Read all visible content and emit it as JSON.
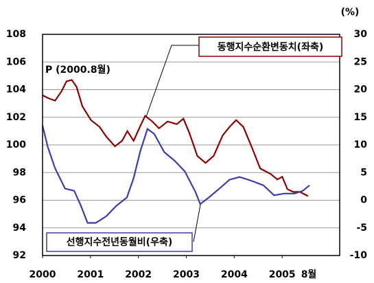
{
  "chart_data": {
    "type": "line",
    "y2label": "(%)",
    "annotations": [
      "P (2000.8월)",
      "8월"
    ],
    "xlim": [
      2000,
      2006.2
    ],
    "xticks": [
      2000,
      2001,
      2002,
      2003,
      2004,
      2005
    ],
    "ylim": [
      92,
      108
    ],
    "yticks": [
      92,
      94,
      96,
      98,
      100,
      102,
      104,
      106,
      108
    ],
    "y2lim": [
      -10,
      30
    ],
    "y2ticks": [
      -10,
      -5,
      0,
      5,
      10,
      15,
      20,
      25,
      30
    ],
    "grid": true,
    "series": [
      {
        "name": "동행지수순환변동치(좌축)",
        "color": "#8b0000",
        "axis": "y",
        "x": [
          2000.0,
          2000.11,
          2000.26,
          2000.4,
          2000.5,
          2000.61,
          2000.71,
          2000.83,
          2001.01,
          2001.19,
          2001.33,
          2001.51,
          2001.66,
          2001.77,
          2001.9,
          2002.03,
          2002.14,
          2002.29,
          2002.43,
          2002.61,
          2002.8,
          2002.94,
          2003.06,
          2003.23,
          2003.4,
          2003.57,
          2003.76,
          2003.9,
          2004.04,
          2004.19,
          2004.37,
          2004.54,
          2004.76,
          2004.9,
          2005.0,
          2005.11,
          2005.23,
          2005.37,
          2005.54
        ],
        "values": [
          103.6,
          103.4,
          103.2,
          103.9,
          104.6,
          104.7,
          104.2,
          102.8,
          101.8,
          101.3,
          100.6,
          99.9,
          100.3,
          101.0,
          100.3,
          101.3,
          102.1,
          101.7,
          101.2,
          101.7,
          101.5,
          101.9,
          100.9,
          99.2,
          98.7,
          99.2,
          100.7,
          101.3,
          101.8,
          101.3,
          99.8,
          98.3,
          97.9,
          97.5,
          97.7,
          96.8,
          96.6,
          96.6,
          96.3
        ]
      },
      {
        "name": "선행지수전년동월비(우축)",
        "color": "#3b3bb0",
        "axis": "y2",
        "x": [
          2000.0,
          2000.11,
          2000.26,
          2000.47,
          2000.66,
          2000.8,
          2000.94,
          2001.11,
          2001.33,
          2001.54,
          2001.76,
          2001.9,
          2002.04,
          2002.19,
          2002.33,
          2002.54,
          2002.76,
          2002.97,
          2003.19,
          2003.29,
          2003.47,
          2003.69,
          2003.9,
          2004.11,
          2004.33,
          2004.61,
          2004.83,
          2005.04,
          2005.26,
          2005.43,
          2005.57
        ],
        "values": [
          13.5,
          9.6,
          5.8,
          2.1,
          1.7,
          -1.0,
          -4.1,
          -4.1,
          -2.9,
          -1.0,
          0.5,
          4.0,
          8.9,
          12.9,
          12.0,
          8.7,
          7.1,
          5.2,
          1.5,
          -0.7,
          0.5,
          2.1,
          3.7,
          4.2,
          3.6,
          2.7,
          0.9,
          1.2,
          1.2,
          1.7,
          2.7
        ]
      }
    ]
  }
}
